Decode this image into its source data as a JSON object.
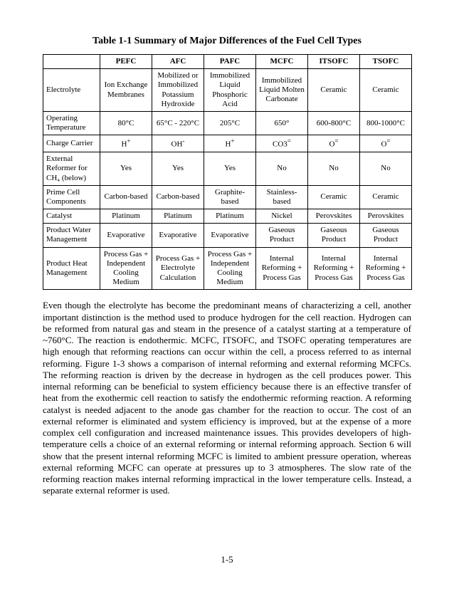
{
  "title": "Table 1-1  Summary of Major Differences of the Fuel Cell Types",
  "columns": [
    "",
    "PEFC",
    "AFC",
    "PAFC",
    "MCFC",
    "ITSOFC",
    "TSOFC"
  ],
  "colwidths": [
    "80px",
    "73px",
    "73px",
    "73px",
    "73px",
    "73px",
    "73px"
  ],
  "rows": [
    {
      "label": "Electrolyte",
      "cells": [
        "Ion Exchange Membranes",
        "Mobilized or Immobilized Potassium Hydroxide",
        "Immobilized Liquid Phosphoric Acid",
        "Immobilized Liquid Molten Carbonate",
        "Ceramic",
        "Ceramic"
      ]
    },
    {
      "label": "Operating Temperature",
      "cells": [
        "80°C",
        "65°C - 220°C",
        "205°C",
        "650°",
        "600-800°C",
        "800-1000°C"
      ]
    },
    {
      "label": "Charge Carrier",
      "html": true,
      "cells": [
        "H<sup>+</sup>",
        "OH<sup>-</sup>",
        "H<sup>+</sup>",
        "CO3<sup>=</sup>",
        "O<sup>=</sup>",
        "O<sup>=</sup>"
      ]
    },
    {
      "label": "External Reformer for CH₄ (below)",
      "cells": [
        "Yes",
        "Yes",
        "Yes",
        "No",
        "No",
        "No"
      ]
    },
    {
      "label": "Prime Cell Components",
      "cells": [
        "Carbon-based",
        "Carbon-based",
        "Graphite-based",
        "Stainless-based",
        "Ceramic",
        "Ceramic"
      ]
    },
    {
      "label": "Catalyst",
      "cells": [
        "Platinum",
        "Platinum",
        "Platinum",
        "Nickel",
        "Perovskites",
        "Perovskites"
      ]
    },
    {
      "label": "Product Water Management",
      "cells": [
        "Evaporative",
        "Evaporative",
        "Evaporative",
        "Gaseous Product",
        "Gaseous Product",
        "Gaseous Product"
      ]
    },
    {
      "label": "Product Heat Management",
      "cells": [
        "Process Gas + Independent Cooling Medium",
        "Process Gas + Electrolyte Calculation",
        "Process Gas + Independent Cooling Medium",
        "Internal Reforming + Process Gas",
        "Internal Reforming + Process Gas",
        "Internal Reforming + Process Gas"
      ]
    }
  ],
  "paragraph": "Even though the electrolyte has become the predominant means of characterizing a cell, another important distinction is the method used to produce hydrogen for the cell reaction.  Hydrogen can be reformed from natural gas and steam in the presence of a catalyst starting at a temperature of ~760°C.  The reaction is endothermic.  MCFC, ITSOFC, and TSOFC operating temperatures are high enough that reforming reactions can occur within the cell, a process referred to as internal reforming.  Figure 1-3 shows a comparison of internal reforming and external reforming MCFCs.  The reforming reaction is driven by the decrease in hydrogen as the cell produces power.  This internal reforming can be beneficial to system efficiency because there is an effective transfer of heat from the exothermic cell reaction to satisfy the endothermic reforming reaction.  A reforming catalyst is needed adjacent to the anode gas chamber for the reaction to occur.  The cost of an external reformer is eliminated and system efficiency is improved, but at the expense of a more complex cell configuration and increased maintenance issues.  This provides developers of high-temperature cells a choice of an external reforming or internal reforming approach.  Section 6 will show that the present internal reforming MCFC is limited to ambient pressure operation, whereas external reforming MCFC can operate at pressures up to 3 atmospheres.  The slow rate of the reforming reaction makes internal reforming impractical in the lower temperature cells.  Instead, a separate external reformer is used.",
  "pagenum": "1-5"
}
